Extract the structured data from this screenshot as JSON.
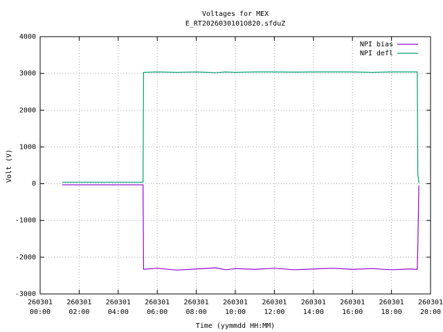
{
  "chart_data": {
    "type": "line",
    "title": "Voltages for MEX",
    "subtitle": "E_RT2026030101O820.sfduZ",
    "x_label": "Time (yymmdd HH:MM)",
    "y_label": "Volt (V)",
    "x": [
      1.13,
      2,
      3,
      4,
      5.27,
      5.3,
      6,
      7,
      8,
      9,
      9.5,
      10,
      11,
      12,
      13,
      14,
      15,
      16,
      17,
      18,
      19,
      19.32,
      19.35,
      19.4
    ],
    "series": [
      {
        "name": "NPI bias",
        "color": "#9400d3",
        "values": [
          -30,
          -30,
          -30,
          -30,
          -30,
          -2330,
          -2300,
          -2350,
          -2320,
          -2290,
          -2340,
          -2310,
          -2330,
          -2300,
          -2340,
          -2320,
          -2300,
          -2330,
          -2310,
          -2340,
          -2320,
          -2330,
          -1700,
          -50
        ]
      },
      {
        "name": "NPI defl",
        "color": "#009e73",
        "values": [
          40,
          40,
          40,
          40,
          40,
          3030,
          3040,
          3030,
          3040,
          3020,
          3040,
          3030,
          3040,
          3040,
          3035,
          3040,
          3040,
          3040,
          3030,
          3040,
          3040,
          3040,
          250,
          20
        ]
      }
    ],
    "xlim": [
      0,
      20
    ],
    "xticks": [
      {
        "value": 0,
        "label": "260301\n00:00"
      },
      {
        "value": 2,
        "label": "260301\n02:00"
      },
      {
        "value": 4,
        "label": "260301\n04:00"
      },
      {
        "value": 6,
        "label": "260301\n06:00"
      },
      {
        "value": 8,
        "label": "260301\n08:00"
      },
      {
        "value": 10,
        "label": "260301\n10:00"
      },
      {
        "value": 12,
        "label": "260301\n12:00"
      },
      {
        "value": 14,
        "label": "260301\n14:00"
      },
      {
        "value": 16,
        "label": "260301\n16:00"
      },
      {
        "value": 18,
        "label": "260301\n18:00"
      },
      {
        "value": 20,
        "label": "260301\n20:00"
      }
    ],
    "ylim": [
      -3000,
      4000
    ],
    "yticks": [
      -3000,
      -2000,
      -1000,
      0,
      1000,
      2000,
      3000,
      4000
    ],
    "grid": true,
    "legend": "top-right"
  }
}
